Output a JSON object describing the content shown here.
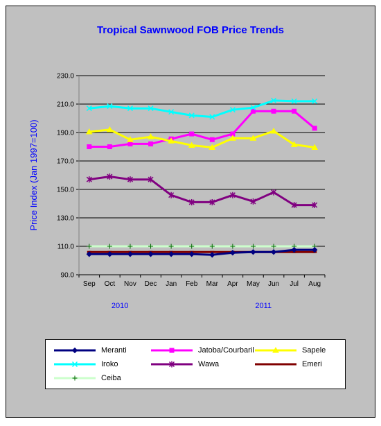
{
  "chart_data": {
    "type": "line",
    "title": "Tropical Sawnwood FOB Price Trends",
    "ylabel": "Price Index  (Jan 1997=100)",
    "xlabel": "",
    "ylim": [
      90,
      230
    ],
    "y_ticks": [
      "90.0",
      "110.0",
      "130.0",
      "150.0",
      "170.0",
      "190.0",
      "210.0",
      "230.0"
    ],
    "x_ticks": [
      "Sep",
      "Oct",
      "Nov",
      "Dec",
      "Jan",
      "Feb",
      "Mar",
      "Apr",
      "May",
      "Jun",
      "Jul",
      "Aug"
    ],
    "year_labels": [
      "2010",
      "2011"
    ],
    "grid": "horizontal",
    "legend_position": "bottom",
    "series": [
      {
        "name": "Meranti",
        "color": "#000080",
        "marker": "diamond",
        "values": [
          104.5,
          104.5,
          104.5,
          104.5,
          104.5,
          104.5,
          104,
          105.5,
          106,
          106,
          107.5,
          107.5
        ]
      },
      {
        "name": "Jatoba/Courbaril",
        "color": "#ff00ff",
        "marker": "square",
        "values": [
          180,
          180,
          182,
          182,
          185.5,
          189,
          185,
          189,
          205,
          205,
          205,
          193
        ]
      },
      {
        "name": "Sapele",
        "color": "#ffff00",
        "marker": "triangle",
        "values": [
          190.5,
          192,
          185,
          187,
          184,
          181,
          179.5,
          186,
          186,
          191,
          181.5,
          179.5
        ]
      },
      {
        "name": "Iroko",
        "color": "#00ffff",
        "marker": "x",
        "values": [
          207,
          208.5,
          207,
          207,
          204.5,
          202,
          201,
          206,
          207.5,
          212.5,
          212,
          212
        ]
      },
      {
        "name": "Wawa",
        "color": "#800080",
        "marker": "star",
        "values": [
          157,
          159,
          157,
          157,
          146,
          141,
          141,
          146,
          141.5,
          148,
          139,
          139
        ]
      },
      {
        "name": "Emeri",
        "color": "#800000",
        "marker": "dash",
        "values": [
          106,
          106,
          106,
          106,
          106,
          106,
          106,
          106,
          106,
          106,
          106,
          106
        ]
      },
      {
        "name": "Ceiba",
        "color": "#ccffcc",
        "marker": "plus",
        "values": [
          110,
          110,
          110,
          110,
          110,
          110,
          110,
          110,
          110,
          110,
          110,
          110
        ]
      }
    ]
  }
}
